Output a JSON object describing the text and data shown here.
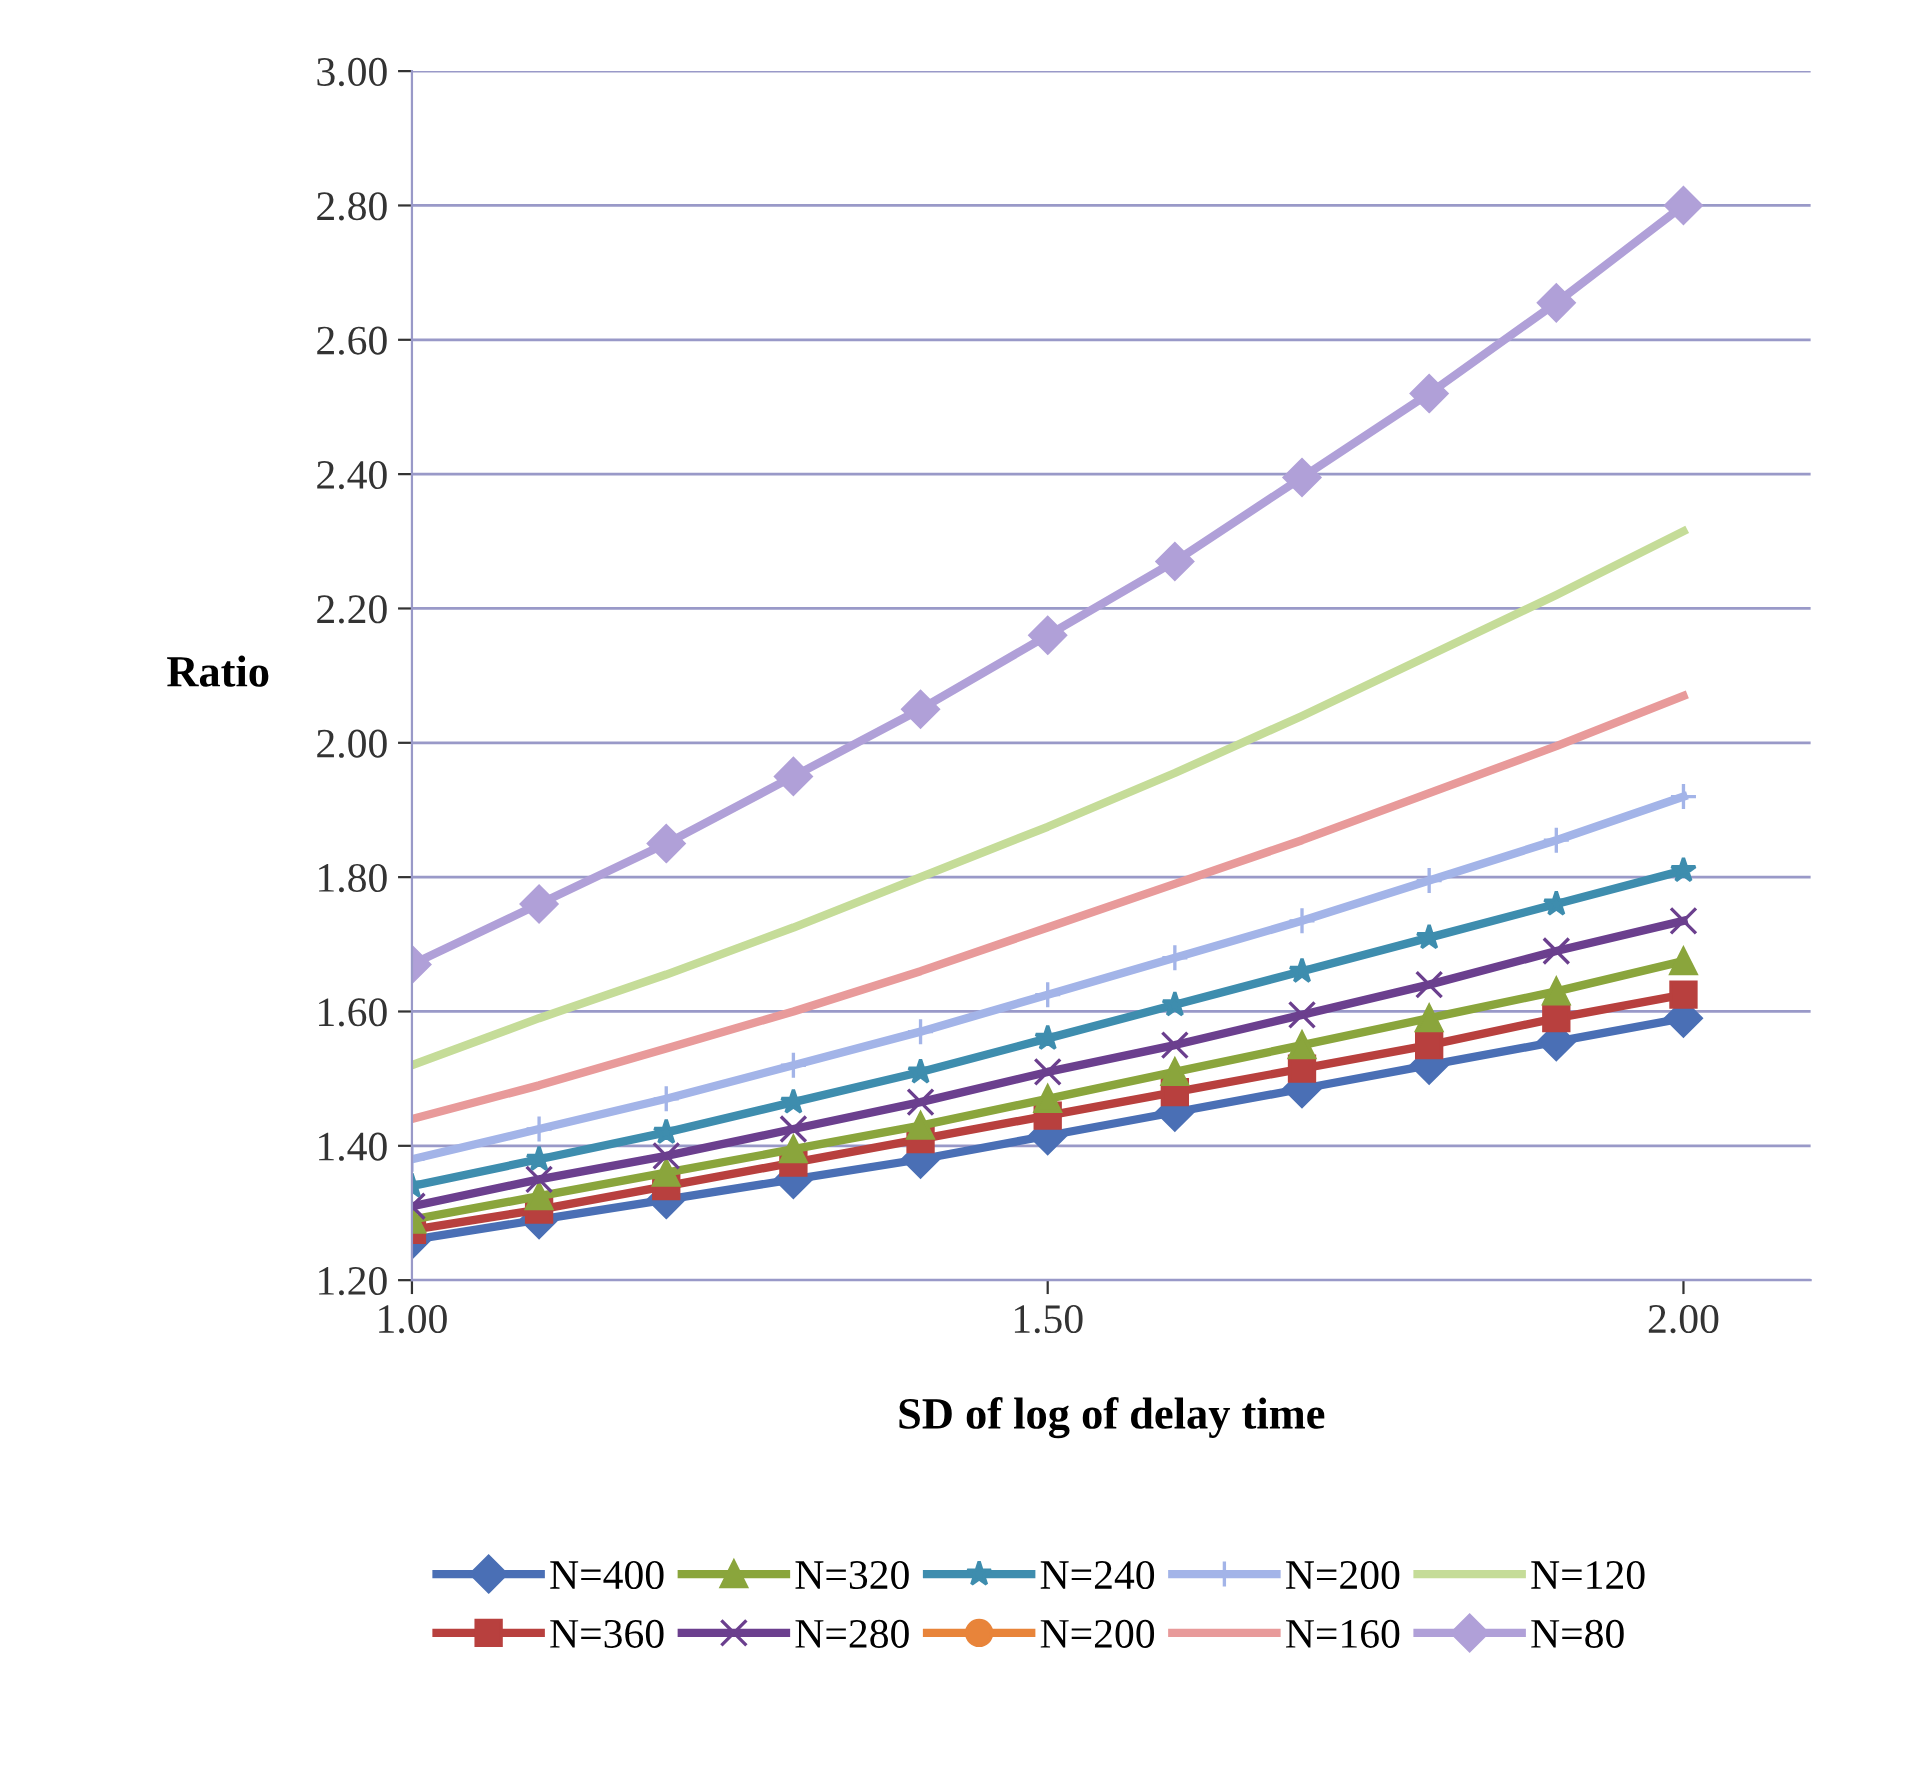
{
  "chart_data": {
    "type": "line",
    "xlabel": "SD of log of delay time",
    "ylabel": "Ratio",
    "x": [
      1.0,
      1.1,
      1.2,
      1.3,
      1.4,
      1.5,
      1.6,
      1.7,
      1.8,
      1.9,
      2.0
    ],
    "xlim": [
      1.0,
      2.1
    ],
    "xticks": [
      {
        "value": 1.0,
        "label": "1.00"
      },
      {
        "value": 1.5,
        "label": "1.50"
      },
      {
        "value": 2.0,
        "label": "2.00"
      }
    ],
    "ylim": [
      1.2,
      3.0
    ],
    "yticks": [
      {
        "value": 1.2,
        "label": "1.20"
      },
      {
        "value": 1.4,
        "label": "1.40"
      },
      {
        "value": 1.6,
        "label": "1.60"
      },
      {
        "value": 1.8,
        "label": "1.80"
      },
      {
        "value": 2.0,
        "label": "2.00"
      },
      {
        "value": 2.2,
        "label": "2.20"
      },
      {
        "value": 2.4,
        "label": "2.40"
      },
      {
        "value": 2.6,
        "label": "2.60"
      },
      {
        "value": 2.8,
        "label": "2.80"
      },
      {
        "value": 3.0,
        "label": "3.00"
      }
    ],
    "grid": "y",
    "legend": "bottom",
    "series": [
      {
        "name": "N=400",
        "color": "#4a6fb5",
        "marker": "diamond",
        "values": [
          1.26,
          1.29,
          1.32,
          1.35,
          1.38,
          1.415,
          1.45,
          1.485,
          1.52,
          1.555,
          1.59
        ]
      },
      {
        "name": "N=360",
        "color": "#b8403e",
        "marker": "square",
        "values": [
          1.275,
          1.305,
          1.34,
          1.375,
          1.41,
          1.445,
          1.48,
          1.515,
          1.55,
          1.59,
          1.625
        ]
      },
      {
        "name": "N=320",
        "color": "#8aa53c",
        "marker": "triangle",
        "values": [
          1.29,
          1.325,
          1.36,
          1.395,
          1.43,
          1.47,
          1.51,
          1.55,
          1.59,
          1.63,
          1.675
        ]
      },
      {
        "name": "N=280",
        "color": "#6b3f8e",
        "marker": "cross",
        "values": [
          1.31,
          1.35,
          1.385,
          1.425,
          1.465,
          1.51,
          1.55,
          1.595,
          1.64,
          1.69,
          1.735
        ]
      },
      {
        "name": "N=240",
        "color": "#3e8dae",
        "marker": "star",
        "values": [
          1.34,
          1.38,
          1.42,
          1.465,
          1.51,
          1.56,
          1.61,
          1.66,
          1.71,
          1.76,
          1.81
        ]
      },
      {
        "name": "N=200",
        "color": "#e8843a",
        "marker": "circle",
        "values": [
          null,
          null,
          null,
          null,
          null,
          null,
          null,
          null,
          null,
          null,
          null
        ]
      },
      {
        "name": "N=200",
        "color": "#a3b4e8",
        "marker": "plus",
        "values": [
          1.38,
          1.425,
          1.47,
          1.52,
          1.57,
          1.625,
          1.68,
          1.735,
          1.795,
          1.855,
          1.92
        ]
      },
      {
        "name": "N=160",
        "color": "#e89a9a",
        "marker": "none",
        "values": [
          1.44,
          1.49,
          1.545,
          1.6,
          1.66,
          1.725,
          1.79,
          1.855,
          1.925,
          1.995,
          2.07
        ]
      },
      {
        "name": "N=120",
        "color": "#c5dc98",
        "marker": "none",
        "values": [
          1.52,
          1.59,
          1.655,
          1.725,
          1.8,
          1.875,
          1.955,
          2.04,
          2.13,
          2.22,
          2.315
        ]
      },
      {
        "name": "N=80",
        "color": "#b0a0d8",
        "marker": "diamond",
        "values": [
          1.67,
          1.76,
          1.85,
          1.95,
          2.05,
          2.16,
          2.27,
          2.395,
          2.52,
          2.655,
          2.8
        ]
      }
    ]
  }
}
